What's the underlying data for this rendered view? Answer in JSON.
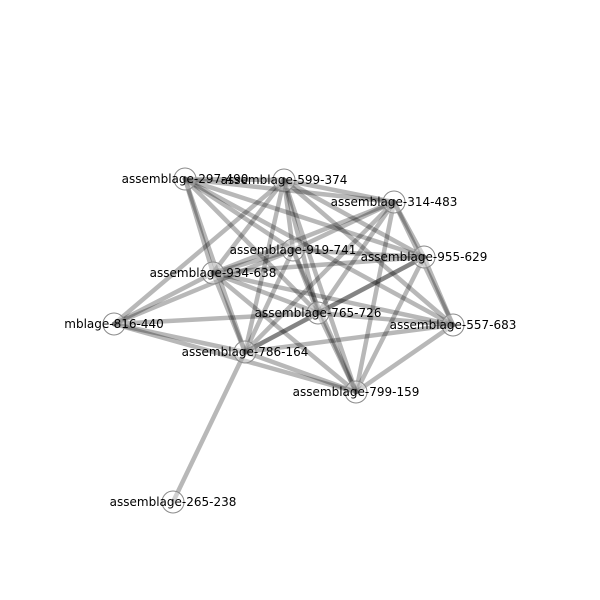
{
  "nodes": [
    {
      "id": "n297",
      "label": "assemblage-297-490"
    },
    {
      "id": "n599",
      "label": "assemblage-599-374"
    },
    {
      "id": "n314",
      "label": "assemblage-314-483"
    },
    {
      "id": "n919",
      "label": "assemblage-919-741"
    },
    {
      "id": "n955",
      "label": "assemblage-955-629"
    },
    {
      "id": "n934",
      "label": "assemblage-934-638"
    },
    {
      "id": "n816",
      "label": "mblage-816-440"
    },
    {
      "id": "n765",
      "label": "assemblage-765-726"
    },
    {
      "id": "n557",
      "label": "assemblage-557-683"
    },
    {
      "id": "n786",
      "label": "assemblage-786-164"
    },
    {
      "id": "n799",
      "label": "assemblage-799-159"
    },
    {
      "id": "n265",
      "label": "assemblage-265-238"
    }
  ],
  "edges": [
    [
      "n297",
      "n599"
    ],
    [
      "n297",
      "n314"
    ],
    [
      "n297",
      "n919"
    ],
    [
      "n297",
      "n955"
    ],
    [
      "n297",
      "n934"
    ],
    [
      "n297",
      "n765"
    ],
    [
      "n297",
      "n557"
    ],
    [
      "n297",
      "n786"
    ],
    [
      "n599",
      "n314"
    ],
    [
      "n599",
      "n919"
    ],
    [
      "n599",
      "n955"
    ],
    [
      "n599",
      "n934"
    ],
    [
      "n599",
      "n816"
    ],
    [
      "n599",
      "n765"
    ],
    [
      "n599",
      "n557"
    ],
    [
      "n599",
      "n786"
    ],
    [
      "n599",
      "n799"
    ],
    [
      "n314",
      "n919"
    ],
    [
      "n314",
      "n955"
    ],
    [
      "n314",
      "n934"
    ],
    [
      "n314",
      "n765"
    ],
    [
      "n314",
      "n557"
    ],
    [
      "n314",
      "n786"
    ],
    [
      "n314",
      "n799"
    ],
    [
      "n919",
      "n955"
    ],
    [
      "n919",
      "n934"
    ],
    [
      "n919",
      "n765"
    ],
    [
      "n919",
      "n786"
    ],
    [
      "n919",
      "n799"
    ],
    [
      "n919",
      "n816"
    ],
    [
      "n955",
      "n934"
    ],
    [
      "n955",
      "n765"
    ],
    [
      "n955",
      "n557"
    ],
    [
      "n955",
      "n786"
    ],
    [
      "n955",
      "n799"
    ],
    [
      "n934",
      "n816"
    ],
    [
      "n934",
      "n765"
    ],
    [
      "n934",
      "n557"
    ],
    [
      "n934",
      "n786"
    ],
    [
      "n934",
      "n799"
    ],
    [
      "n816",
      "n765"
    ],
    [
      "n816",
      "n786"
    ],
    [
      "n816",
      "n799"
    ],
    [
      "n765",
      "n557"
    ],
    [
      "n765",
      "n786"
    ],
    [
      "n765",
      "n799"
    ],
    [
      "n557",
      "n786"
    ],
    [
      "n557",
      "n799"
    ],
    [
      "n786",
      "n799"
    ],
    [
      "n786",
      "n265"
    ]
  ]
}
